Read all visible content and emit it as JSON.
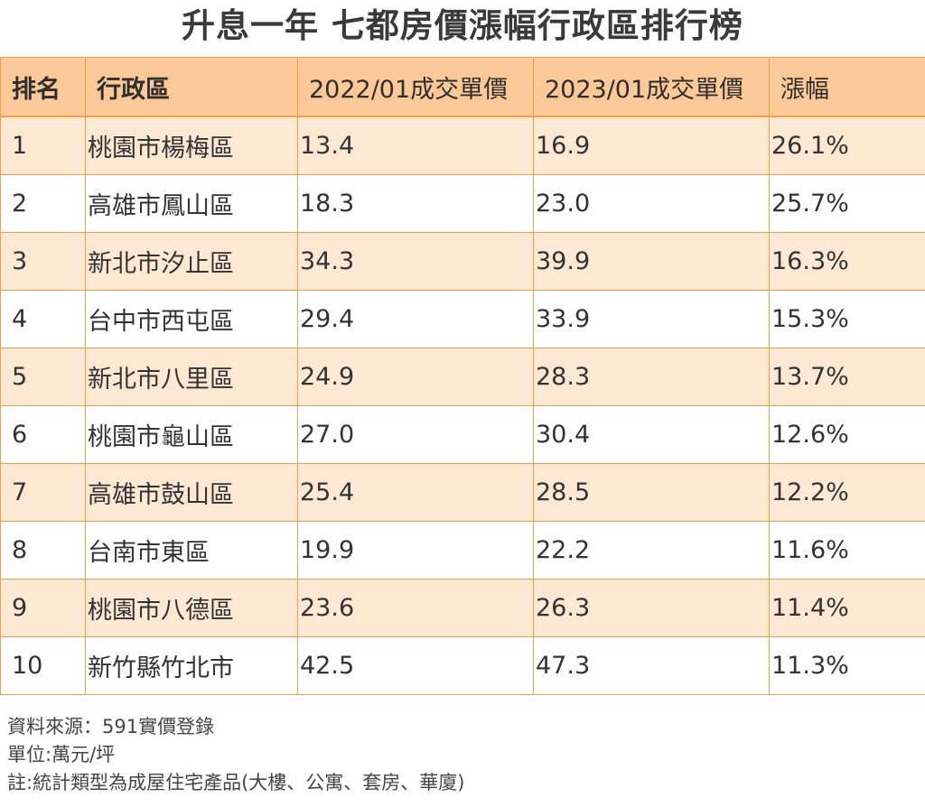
{
  "title": "升息一年 七都房價漲幅行政區排行榜",
  "table": {
    "headers": [
      "排名",
      "行政區",
      "2022/01成交單價",
      "2023/01成交單價",
      "漲幅"
    ],
    "rows": [
      [
        "1",
        "桃園市楊梅區",
        "13.4",
        "16.9",
        "26.1%"
      ],
      [
        "2",
        "高雄市鳳山區",
        "18.3",
        "23.0",
        "25.7%"
      ],
      [
        "3",
        "新北市汐止區",
        "34.3",
        "39.9",
        "16.3%"
      ],
      [
        "4",
        "台中市西屯區",
        "29.4",
        "33.9",
        "15.3%"
      ],
      [
        "5",
        "新北市八里區",
        "24.9",
        "28.3",
        "13.7%"
      ],
      [
        "6",
        "桃園市龜山區",
        "27.0",
        "30.4",
        "12.6%"
      ],
      [
        "7",
        "高雄市鼓山區",
        "25.4",
        "28.5",
        "12.2%"
      ],
      [
        "8",
        "台南市東區",
        "19.9",
        "22.2",
        "11.6%"
      ],
      [
        "9",
        "桃園市八德區",
        "23.6",
        "26.3",
        "11.4%"
      ],
      [
        "10",
        "新竹縣竹北市",
        "42.5",
        "47.3",
        "11.3%"
      ]
    ]
  },
  "notes": {
    "source": "資料來源：591實價登錄",
    "unit": "單位:萬元/坪",
    "remark": "註:統計類型為成屋住宅產品(大樓、公寓、套房、華廈)"
  },
  "colors": {
    "header_bg": "#fbc897",
    "odd_row_bg": "#fde8d3",
    "even_row_bg": "#ffffff",
    "border": "#f0a04a"
  }
}
